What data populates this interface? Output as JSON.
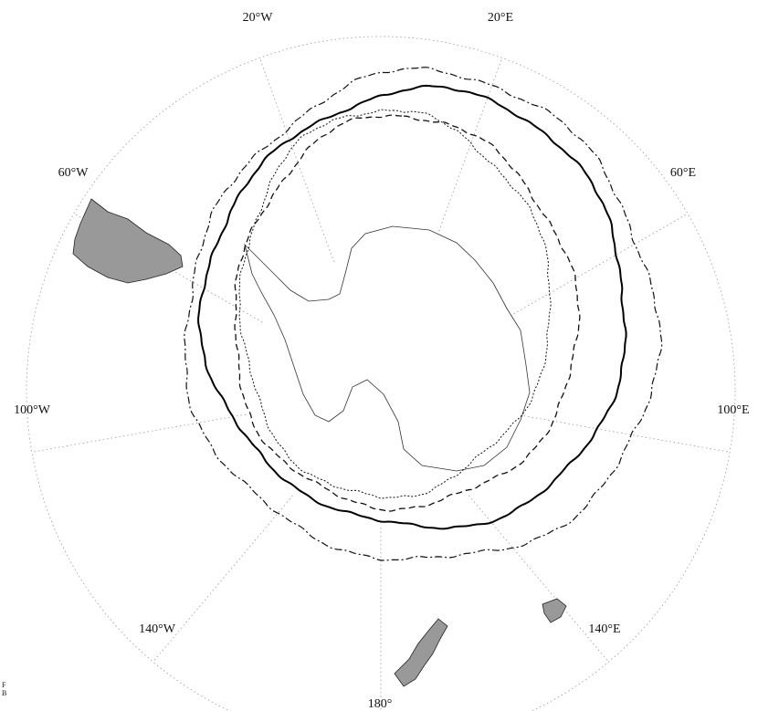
{
  "longitude_labels": [
    "20°W",
    "20°E",
    "60°W",
    "60°E",
    "100°W",
    "100°E",
    "140°W",
    "140°E",
    "180°"
  ],
  "corner_marks": [
    "F",
    "B"
  ]
}
